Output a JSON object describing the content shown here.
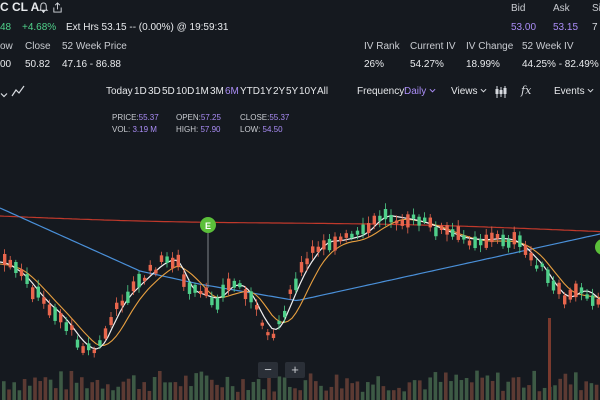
{
  "quote": {
    "symbol_partial": "C CL A",
    "price_partial": "48",
    "change_pct": "+4.68%",
    "ext_hours": "Ext Hrs 53.15 -- (0.00%) @ 19:59:31",
    "bid_label": "Bid",
    "bid_value": "53.00",
    "ask_label": "Ask",
    "ask_value": "53.15",
    "size_label_partial": "Si",
    "size_value_partial": "7"
  },
  "stats": {
    "low_label_partial": "ow",
    "low_value_partial": "00",
    "close_label": "Close",
    "close_value": "50.82",
    "week52_label": "52 Week Price",
    "week52_value": "47.16 - 86.88",
    "ivrank_label": "IV Rank",
    "ivrank_value": "26%",
    "currentiv_label": "Current IV",
    "currentiv_value": "54.27%",
    "ivchange_label": "IV Change",
    "ivchange_value": "18.99%",
    "week52iv_label": "52 Week IV",
    "week52iv_value": "44.25% - 82.49%"
  },
  "toolbar": {
    "ranges": [
      "Today",
      "1D",
      "3D",
      "5D",
      "10D",
      "1M",
      "3M",
      "6M",
      "YTD",
      "1Y",
      "2Y",
      "5Y",
      "10Y",
      "All"
    ],
    "active_range": "6M",
    "frequency_label": "Frequency:",
    "frequency_value": "Daily",
    "views_label": "Views",
    "events_label": "Events"
  },
  "ohlc": {
    "price_label": "PRICE:",
    "price_value": "55.37",
    "open_label": "OPEN:",
    "open_value": "57.25",
    "close_label": "CLOSE:",
    "close_value": "55.37",
    "vol_label": "VOL:",
    "vol_value": "3.19 M",
    "high_label": "HIGH:",
    "high_value": "57.90",
    "low_label": "LOW:",
    "low_value": "54.50"
  },
  "event_marker": "E",
  "zoom": {
    "minus": "−",
    "plus": "+"
  },
  "icons": {
    "bell": "bell-icon",
    "share": "share-icon",
    "draw": "draw-line-icon",
    "candle": "candlestick-icon",
    "fx": "fx-icon"
  },
  "colors": {
    "up": "#4fd08a",
    "down": "#e8664d",
    "accent": "#a98cf5",
    "ma_red": "#c0392b",
    "ma_blue": "#4a90d9",
    "ma_orange": "#e8a040",
    "ma_white": "#f0f0f0"
  }
}
